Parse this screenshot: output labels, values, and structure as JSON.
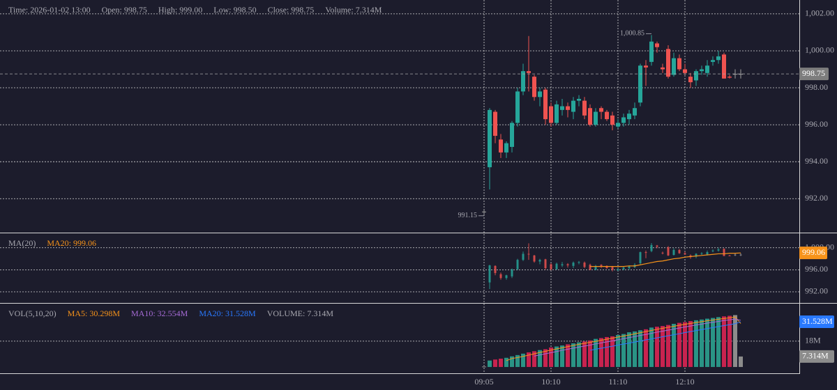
{
  "info": [
    "Time: 2026-01-02 13:00",
    "Open: 998.75",
    "High: 999.00",
    "Low: 998.50",
    "Close: 998.75",
    "Volume: 7.314M"
  ],
  "chart_data": [
    {
      "type": "candlestick",
      "categories": [
        "09:05",
        null,
        null,
        null,
        null,
        null,
        null,
        null,
        null,
        null,
        null,
        null,
        "10:10",
        null,
        null,
        null,
        null,
        null,
        null,
        null,
        null,
        null,
        null,
        null,
        "11:10",
        null,
        null,
        null,
        null,
        null,
        null,
        null,
        null,
        null,
        null,
        null,
        "12:10",
        null,
        null,
        null,
        null,
        null,
        null,
        null,
        null,
        null,
        null
      ],
      "open": [
        991.3,
        993.7,
        996.7,
        995.2,
        994.5,
        994.8,
        996.1,
        997.8,
        998.9,
        998.6,
        997.5,
        997.9,
        997.0,
        996.1,
        996.8,
        997.0,
        996.7,
        997.3,
        997.3,
        996.9,
        996.0,
        996.9,
        996.7,
        996.5,
        995.9,
        996.1,
        996.3,
        996.5,
        997.2,
        999.2,
        999.4,
        1000.4,
        999.1,
        1000.1,
        998.7,
        999.6,
        999.0,
        998.6,
        998.4,
        998.9,
        998.8,
        999.4,
        999.5,
        999.8,
        998.6,
        998.75,
        998.75
      ],
      "high": [
        991.4,
        996.9,
        996.8,
        995.5,
        995.1,
        996.2,
        998.0,
        999.3,
        1000.8,
        998.7,
        998.0,
        998.0,
        997.2,
        997.3,
        997.4,
        997.2,
        997.5,
        997.6,
        997.5,
        997.1,
        996.9,
        997.0,
        996.8,
        996.7,
        996.3,
        996.6,
        996.8,
        997.2,
        999.3,
        999.5,
        1000.85,
        1000.5,
        999.3,
        1000.3,
        999.9,
        999.8,
        999.3,
        998.8,
        999.0,
        999.2,
        999.5,
        999.7,
        1000.0,
        999.9,
        998.7,
        999.0,
        999.0
      ],
      "low": [
        991.15,
        992.5,
        995.0,
        994.2,
        994.2,
        994.5,
        995.9,
        997.6,
        997.8,
        997.3,
        997.0,
        996.0,
        995.9,
        996.0,
        996.5,
        996.4,
        996.3,
        997.0,
        996.3,
        995.9,
        995.9,
        996.3,
        996.2,
        995.7,
        995.8,
        995.9,
        996.0,
        996.3,
        997.0,
        998.1,
        999.2,
        999.9,
        998.8,
        998.5,
        998.6,
        998.9,
        998.7,
        998.0,
        998.1,
        998.7,
        998.6,
        999.2,
        999.3,
        998.5,
        998.5,
        998.5,
        998.5
      ],
      "close": [
        991.3,
        996.8,
        995.4,
        994.5,
        995.0,
        996.1,
        997.8,
        998.9,
        998.8,
        997.5,
        997.8,
        996.3,
        996.1,
        997.1,
        997.0,
        996.8,
        997.3,
        997.4,
        996.5,
        996.0,
        996.7,
        996.7,
        996.3,
        996.0,
        996.1,
        996.4,
        996.6,
        996.9,
        999.2,
        999.1,
        1000.5,
        1000.2,
        999.0,
        998.6,
        999.6,
        999.0,
        998.8,
        998.3,
        998.9,
        999.0,
        999.2,
        999.5,
        999.7,
        998.5,
        998.55,
        998.75,
        998.75
      ],
      "up_color": "#26a69a",
      "down_color": "#ef5350",
      "neutral_color": "#9e9e9e",
      "ylim": [
        990.2,
        1002.75
      ],
      "yticks": [
        {
          "value": 992,
          "label": "992.00"
        },
        {
          "value": 994,
          "label": "994.00"
        },
        {
          "value": 996,
          "label": "996.00"
        },
        {
          "value": 998,
          "label": "998.00"
        },
        {
          "value": 1000,
          "label": "1,000.00"
        },
        {
          "value": 1002,
          "label": "1,002.00"
        }
      ],
      "grid": true,
      "last_price": {
        "value": 998.75,
        "label": "998.75"
      },
      "annotations": [
        {
          "value": 1000.85,
          "label": "1,000.85"
        },
        {
          "value": 991.15,
          "label": "991.15"
        }
      ]
    },
    {
      "type": "moving-average",
      "title": "MA(20)",
      "series": [
        {
          "name": "MA20: 999.06",
          "color": "#f7931a",
          "values": [
            null,
            null,
            null,
            null,
            null,
            null,
            null,
            null,
            null,
            null,
            null,
            null,
            null,
            null,
            null,
            null,
            null,
            null,
            null,
            996.6,
            996.6,
            996.6,
            996.6,
            996.6,
            996.6,
            996.6,
            996.7,
            996.7,
            996.9,
            997.1,
            997.3,
            997.5,
            997.6,
            997.8,
            998.0,
            998.1,
            998.3,
            998.4,
            998.5,
            998.6,
            998.7,
            998.8,
            998.9,
            998.9,
            999.0,
            999.0,
            999.06
          ]
        }
      ],
      "ylim": [
        990.1,
        1002.5
      ],
      "yticks": [
        {
          "value": 992,
          "label": "992.00"
        },
        {
          "value": 996,
          "label": "996.00"
        },
        {
          "value": 1000,
          "label": "1,000.00"
        }
      ],
      "grid": true,
      "last_value": {
        "value": 999.06,
        "label": "999.06"
      }
    },
    {
      "type": "volume",
      "title": "VOL(5,10,20)",
      "values": [
        300000,
        4500000,
        5200000,
        5800000,
        6400000,
        7400000,
        8300000,
        9300000,
        10200000,
        11000000,
        11800000,
        12400000,
        13600000,
        14300000,
        15000000,
        15800000,
        16500000,
        17200000,
        17800000,
        18500000,
        19600000,
        20200000,
        20900000,
        21400000,
        22300000,
        23000000,
        24200000,
        24800000,
        25600000,
        26300000,
        27500000,
        28100000,
        28600000,
        29300000,
        30100000,
        30800000,
        31300000,
        32000000,
        32600000,
        33100000,
        33700000,
        34200000,
        34800000,
        35300000,
        35700000,
        36200000,
        7314000
      ],
      "up_color": "#2a9485",
      "down_color": "#c8234f",
      "neutral_color": "#8c8c8c",
      "series": [
        {
          "name": "MA5: 30.298M",
          "color": "#f7931a",
          "values": [
            null,
            null,
            null,
            null,
            4400000,
            5900000,
            6600000,
            7400000,
            8300000,
            9200000,
            10100000,
            10900000,
            11800000,
            12600000,
            13400000,
            14200000,
            15000000,
            15800000,
            16500000,
            17200000,
            17900000,
            18700000,
            19400000,
            20100000,
            20900000,
            21600000,
            22300000,
            23100000,
            23900000,
            24700000,
            25500000,
            26300000,
            27000000,
            27700000,
            28400000,
            29100000,
            29800000,
            30400000,
            31000000,
            31600000,
            32200000,
            32700000,
            33300000,
            33800000,
            34300000,
            34900000,
            30298000
          ]
        },
        {
          "name": "MA10: 32.554M",
          "color": "#a66bd6",
          "values": [
            null,
            null,
            null,
            null,
            null,
            null,
            null,
            null,
            null,
            7600000,
            8400000,
            9200000,
            10000000,
            10800000,
            11600000,
            12400000,
            13100000,
            13900000,
            14600000,
            15300000,
            16100000,
            16800000,
            17500000,
            18200000,
            19000000,
            19700000,
            20500000,
            21200000,
            22000000,
            22700000,
            23500000,
            24300000,
            25000000,
            25700000,
            26400000,
            27200000,
            27900000,
            28600000,
            29300000,
            29900000,
            30600000,
            31200000,
            31800000,
            32400000,
            32900000,
            33500000,
            32554000
          ]
        },
        {
          "name": "MA20: 31.528M",
          "color": "#2979ff",
          "values": [
            null,
            null,
            null,
            null,
            null,
            null,
            null,
            null,
            null,
            null,
            null,
            null,
            null,
            null,
            null,
            null,
            null,
            null,
            null,
            11600000,
            12400000,
            13100000,
            13800000,
            14500000,
            15300000,
            16000000,
            16700000,
            17400000,
            18100000,
            18900000,
            19600000,
            20300000,
            21100000,
            21800000,
            22500000,
            23200000,
            24000000,
            24700000,
            25400000,
            26100000,
            26800000,
            27500000,
            28200000,
            28900000,
            29500000,
            30200000,
            31528000
          ]
        }
      ],
      "volume_label": "VOLUME: 7.314M",
      "ylim": [
        -4400000,
        43700000
      ],
      "yticks": [
        {
          "value": 18000000,
          "label": "18M"
        }
      ],
      "grid": true,
      "tags": [
        {
          "value": 31528000,
          "label": "31.528M",
          "color": "#2979ff"
        },
        {
          "value": 7314000,
          "label": "7.314M",
          "color": "#8c8c8c"
        }
      ]
    }
  ]
}
